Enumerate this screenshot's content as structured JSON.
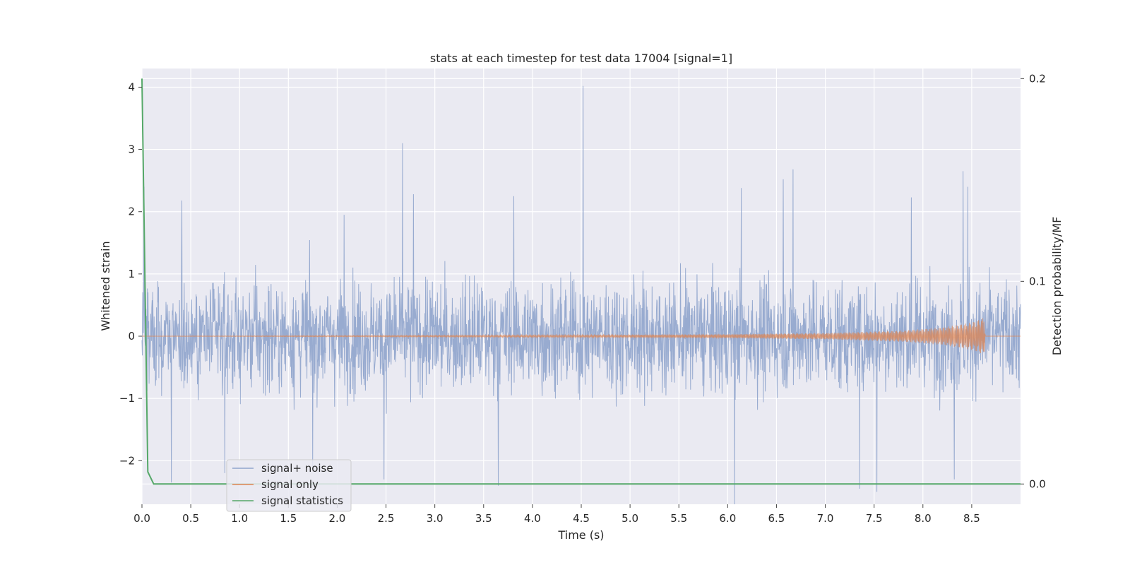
{
  "chart_data": {
    "type": "line",
    "title": "stats at each timestep for test data 17004 [signal=1]",
    "xlabel": "Time (s)",
    "ylabel": "Whitened strain",
    "y2label": "Detection probability/MF",
    "xlim": [
      0.0,
      9.0
    ],
    "ylim": [
      -2.7,
      4.3
    ],
    "y2lim": [
      -0.01,
      0.205
    ],
    "xticks": [
      "0.0",
      "0.5",
      "1.0",
      "1.5",
      "2.0",
      "2.5",
      "3.0",
      "3.5",
      "4.0",
      "4.5",
      "5.0",
      "5.5",
      "6.0",
      "6.5",
      "7.0",
      "7.5",
      "8.0",
      "8.5"
    ],
    "yticks": [
      "−2",
      "−1",
      "0",
      "1",
      "2",
      "3",
      "4"
    ],
    "y2ticks": [
      "0.0",
      "0.1",
      "0.2"
    ],
    "grid": true,
    "legend_position": "lower-left",
    "colors": {
      "plot_bg": "#eaeaf2",
      "grid": "#ffffff",
      "noise": "#8fa4cc",
      "signal": "#dd8452",
      "stats": "#55a868"
    },
    "series": [
      {
        "name": "signal+ noise",
        "axis": "left",
        "description_values": "noisy whitened strain, typical band -1.8 to 1.9",
        "peaks": [
          {
            "x": 0.02,
            "y": 2.4
          },
          {
            "x": 0.41,
            "y": 2.18
          },
          {
            "x": 0.3,
            "y": -2.35
          },
          {
            "x": 0.85,
            "y": -2.2
          },
          {
            "x": 1.75,
            "y": -2.1
          },
          {
            "x": 2.07,
            "y": 1.95
          },
          {
            "x": 2.48,
            "y": -2.3
          },
          {
            "x": 2.67,
            "y": 3.1
          },
          {
            "x": 2.78,
            "y": 2.28
          },
          {
            "x": 3.65,
            "y": -2.4
          },
          {
            "x": 3.81,
            "y": 2.25
          },
          {
            "x": 4.52,
            "y": 4.02
          },
          {
            "x": 6.07,
            "y": -2.7
          },
          {
            "x": 6.14,
            "y": 2.38
          },
          {
            "x": 6.57,
            "y": 2.52
          },
          {
            "x": 6.67,
            "y": 2.68
          },
          {
            "x": 7.35,
            "y": -2.45
          },
          {
            "x": 7.53,
            "y": -2.5
          },
          {
            "x": 7.88,
            "y": 2.23
          },
          {
            "x": 8.32,
            "y": -2.3
          },
          {
            "x": 8.41,
            "y": 2.65
          },
          {
            "x": 8.46,
            "y": 2.4
          }
        ]
      },
      {
        "name": "signal only",
        "axis": "left",
        "description_values": "chirp waveform, amplitude growing toward merger",
        "points": [
          {
            "x": 0.0,
            "y": 0.0
          },
          {
            "x": 4.8,
            "y": 0.02
          },
          {
            "x": 6.0,
            "y": 0.03
          },
          {
            "x": 7.0,
            "y": 0.05
          },
          {
            "x": 7.8,
            "y": 0.09
          },
          {
            "x": 8.2,
            "y": 0.14
          },
          {
            "x": 8.5,
            "y": 0.22
          },
          {
            "x": 8.63,
            "y": 0.3
          },
          {
            "x": 8.64,
            "y": 0.0
          },
          {
            "x": 9.0,
            "y": 0.0
          }
        ]
      },
      {
        "name": "signal statistics",
        "axis": "right",
        "points": [
          {
            "x": 0.0,
            "y": 0.2
          },
          {
            "x": 0.06,
            "y": 0.006
          },
          {
            "x": 0.12,
            "y": 0.0
          },
          {
            "x": 9.0,
            "y": 0.0
          }
        ]
      }
    ]
  }
}
